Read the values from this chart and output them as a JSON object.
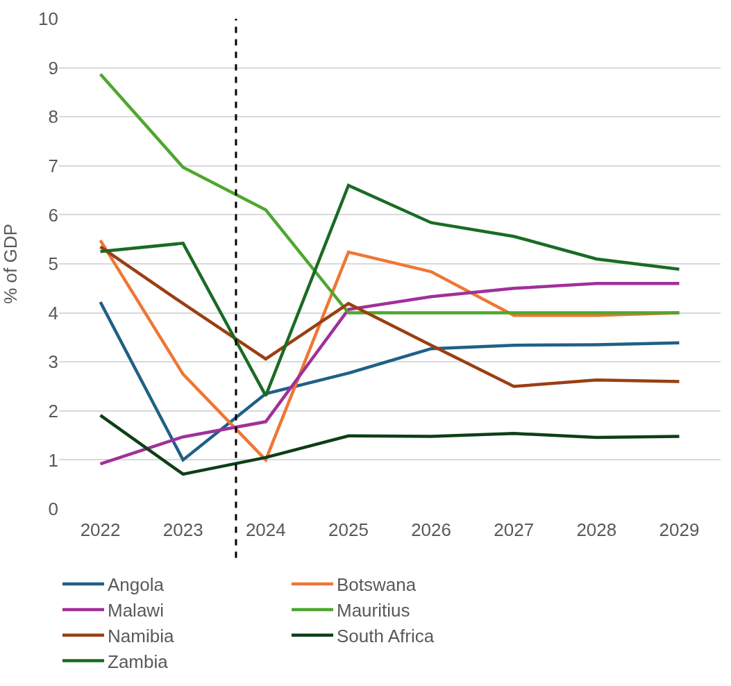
{
  "chart_data": {
    "type": "line",
    "ylabel": "% of GDP",
    "x": [
      2022,
      2023,
      2024,
      2025,
      2026,
      2027,
      2028,
      2029
    ],
    "xlim": [
      2021.5,
      2029.5
    ],
    "xticks": [
      2022,
      2023,
      2024,
      2025,
      2026,
      2027,
      2028,
      2029
    ],
    "ylim": [
      0,
      10
    ],
    "yticks": [
      0,
      1,
      2,
      3,
      4,
      5,
      6,
      7,
      8,
      9,
      10
    ],
    "grid": "y",
    "legend": "bottom",
    "marker": "none",
    "line_style": "solid",
    "ref_lines": [
      {
        "axis": "x",
        "value": 2023.64,
        "color": "#000000",
        "line_style": "dashed"
      }
    ],
    "series": [
      {
        "name": "Angola",
        "color": "#1f6087",
        "values": [
          4.22,
          1.0,
          2.35,
          2.77,
          3.27,
          3.34,
          3.35,
          3.39
        ]
      },
      {
        "name": "Botswana",
        "color": "#ee7734",
        "values": [
          5.48,
          2.75,
          1.0,
          5.24,
          4.84,
          3.95,
          3.95,
          4.0
        ]
      },
      {
        "name": "Malawi",
        "color": "#a0309a",
        "values": [
          0.92,
          1.47,
          1.78,
          4.07,
          4.33,
          4.5,
          4.6,
          4.6
        ]
      },
      {
        "name": "Mauritius",
        "color": "#4ea72e",
        "values": [
          8.87,
          6.97,
          6.1,
          4.0,
          4.0,
          4.0,
          4.0,
          4.0
        ]
      },
      {
        "name": "Namibia",
        "color": "#9a3f12",
        "values": [
          5.35,
          4.19,
          3.06,
          4.19,
          3.34,
          2.5,
          2.63,
          2.6
        ]
      },
      {
        "name": "South Africa",
        "color": "#0e3f17",
        "values": [
          1.91,
          0.71,
          1.05,
          1.49,
          1.48,
          1.54,
          1.46,
          1.48
        ]
      },
      {
        "name": "Zambia",
        "color": "#1b6b24",
        "values": [
          5.25,
          5.42,
          2.31,
          6.6,
          5.84,
          5.56,
          5.1,
          4.89
        ]
      }
    ]
  }
}
